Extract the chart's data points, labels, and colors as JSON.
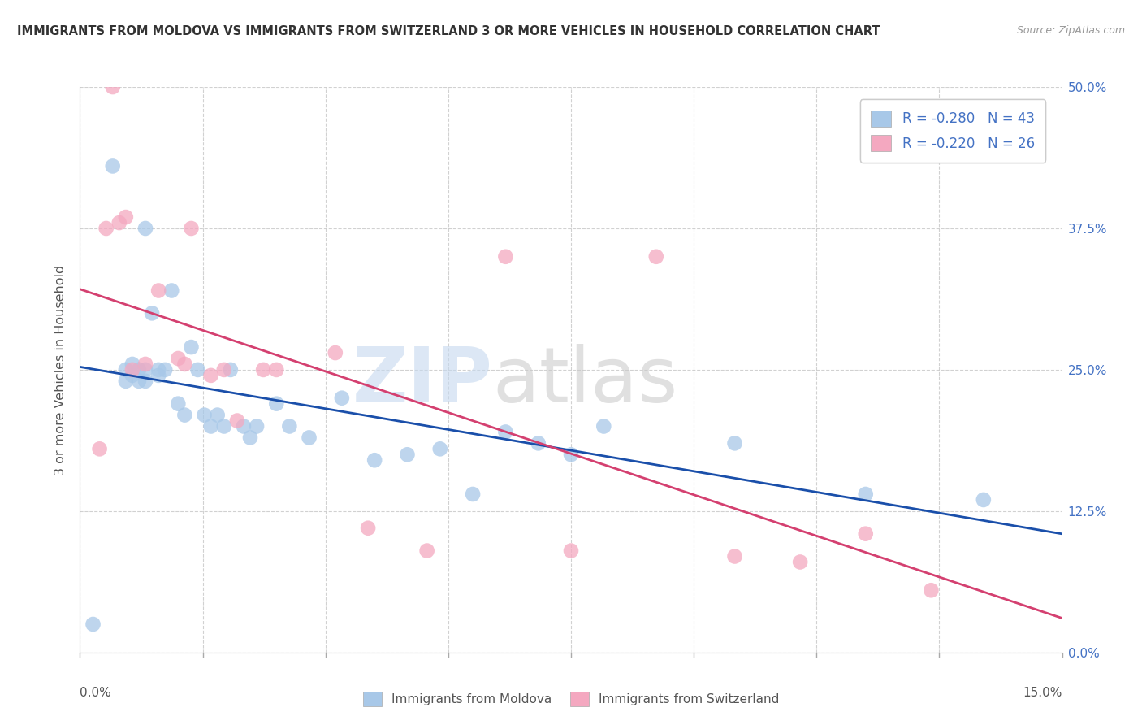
{
  "title": "IMMIGRANTS FROM MOLDOVA VS IMMIGRANTS FROM SWITZERLAND 3 OR MORE VEHICLES IN HOUSEHOLD CORRELATION CHART",
  "source": "Source: ZipAtlas.com",
  "ylabel": "3 or more Vehicles in Household",
  "xlim": [
    0.0,
    15.0
  ],
  "ylim": [
    0.0,
    50.0
  ],
  "yticks": [
    0.0,
    12.5,
    25.0,
    37.5,
    50.0
  ],
  "color_moldova": "#a8c8e8",
  "color_switzerland": "#f4a8c0",
  "line_color_moldova": "#1a4faa",
  "line_color_switzerland": "#d44070",
  "moldova_x": [
    0.2,
    0.5,
    0.7,
    0.7,
    0.8,
    0.8,
    0.9,
    0.9,
    1.0,
    1.0,
    1.0,
    1.1,
    1.2,
    1.2,
    1.3,
    1.4,
    1.5,
    1.6,
    1.7,
    1.8,
    1.9,
    2.0,
    2.1,
    2.2,
    2.3,
    2.5,
    2.6,
    2.7,
    3.0,
    3.2,
    3.5,
    4.0,
    4.5,
    5.0,
    5.5,
    6.0,
    6.5,
    7.0,
    7.5,
    8.0,
    10.0,
    12.0,
    13.8
  ],
  "moldova_y": [
    2.5,
    43.0,
    25.0,
    24.0,
    24.5,
    25.5,
    24.0,
    25.0,
    37.5,
    25.0,
    24.0,
    30.0,
    25.0,
    24.5,
    25.0,
    32.0,
    22.0,
    21.0,
    27.0,
    25.0,
    21.0,
    20.0,
    21.0,
    20.0,
    25.0,
    20.0,
    19.0,
    20.0,
    22.0,
    20.0,
    19.0,
    22.5,
    17.0,
    17.5,
    18.0,
    14.0,
    19.5,
    18.5,
    17.5,
    20.0,
    18.5,
    14.0,
    13.5
  ],
  "switzerland_x": [
    0.3,
    0.4,
    0.5,
    0.6,
    0.7,
    0.8,
    1.0,
    1.2,
    1.5,
    1.6,
    1.7,
    2.0,
    2.2,
    2.4,
    2.8,
    3.0,
    3.9,
    4.4,
    5.3,
    6.5,
    7.5,
    8.8,
    10.0,
    11.0,
    12.0,
    13.0
  ],
  "switzerland_y": [
    18.0,
    37.5,
    50.0,
    38.0,
    38.5,
    25.0,
    25.5,
    32.0,
    26.0,
    25.5,
    37.5,
    24.5,
    25.0,
    20.5,
    25.0,
    25.0,
    26.5,
    11.0,
    9.0,
    35.0,
    9.0,
    35.0,
    8.5,
    8.0,
    10.5,
    5.5
  ],
  "background_color": "#ffffff",
  "grid_color": "#cccccc"
}
